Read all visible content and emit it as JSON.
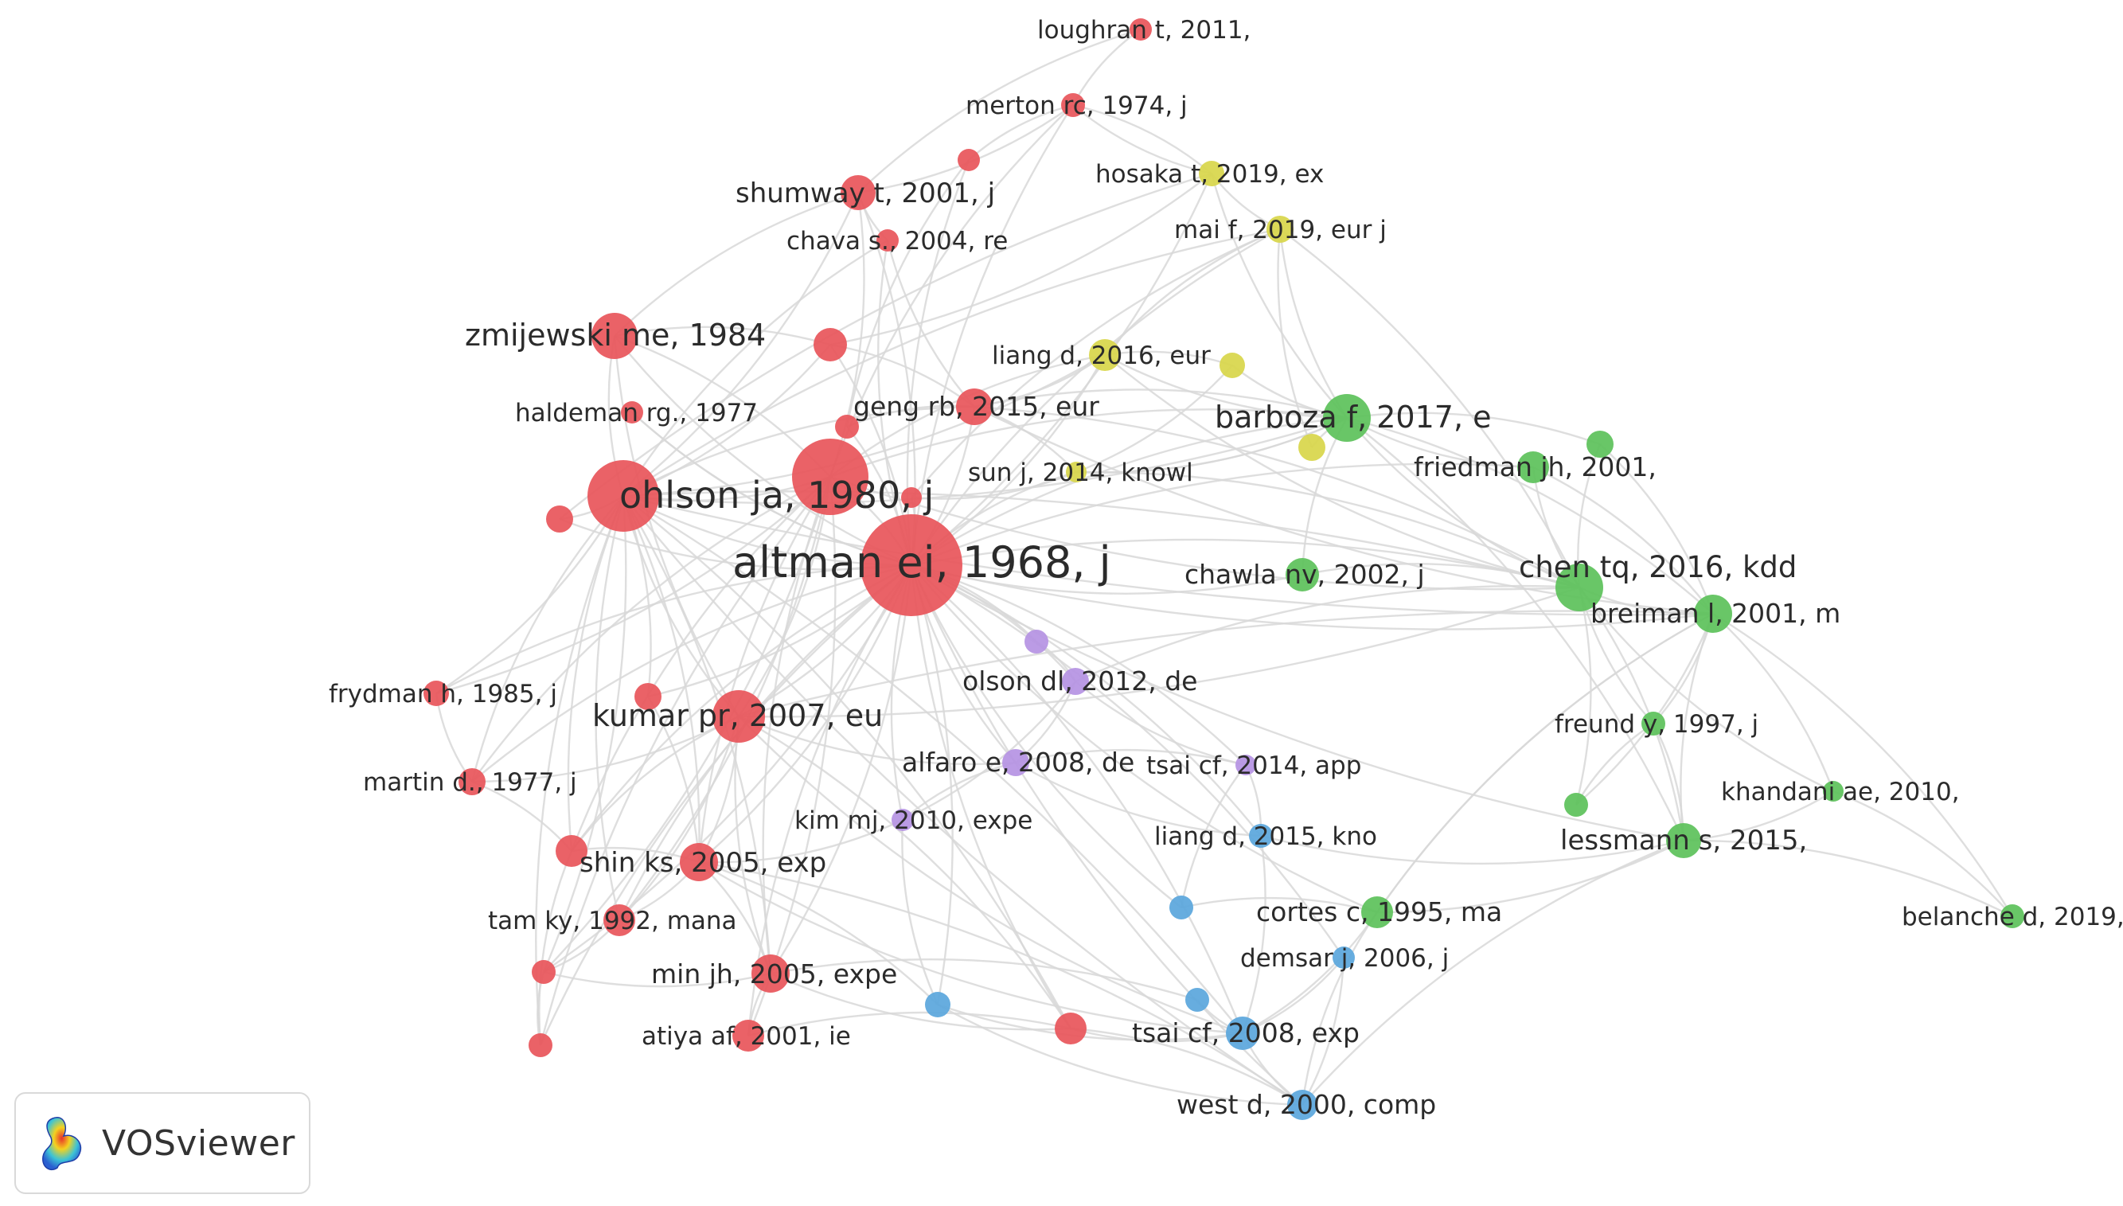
{
  "legend": {
    "logo_text": "VOSviewer"
  },
  "colors": {
    "cluster_red": "#e8555a",
    "cluster_green": "#5cc15a",
    "cluster_yellow": "#d8d64a",
    "cluster_purple": "#b592e3",
    "cluster_blue": "#5aa6dc",
    "edge": "#d8d8d8"
  },
  "nodes": [
    {
      "id": "loughran",
      "label": "loughran t, 2011,",
      "cluster": "red"
    },
    {
      "id": "merton",
      "label": "merton rc, 1974, j",
      "cluster": "red"
    },
    {
      "id": "shumway",
      "label": "shumway t, 2001, j",
      "cluster": "red"
    },
    {
      "id": "chava",
      "label": "chava s., 2004, re",
      "cluster": "red"
    },
    {
      "id": "hosaka",
      "label": "hosaka t, 2019, ex",
      "cluster": "yellow"
    },
    {
      "id": "mai",
      "label": "mai f, 2019, eur j",
      "cluster": "yellow"
    },
    {
      "id": "zmijewski",
      "label": "zmijewski me, 1984",
      "cluster": "red"
    },
    {
      "id": "liang2016",
      "label": "liang d, 2016, eur",
      "cluster": "yellow"
    },
    {
      "id": "haldeman",
      "label": "haldeman rg., 1977",
      "cluster": "red"
    },
    {
      "id": "geng",
      "label": "geng rb, 2015, eur",
      "cluster": "red"
    },
    {
      "id": "barboza",
      "label": "barboza f, 2017, e",
      "cluster": "green"
    },
    {
      "id": "ohlson",
      "label": "ohlson ja, 1980, j",
      "cluster": "red"
    },
    {
      "id": "sun",
      "label": "sun j, 2014, knowl",
      "cluster": "yellow"
    },
    {
      "id": "friedman",
      "label": "friedman jh, 2001,",
      "cluster": "green"
    },
    {
      "id": "altman",
      "label": "altman ei, 1968, j",
      "cluster": "red"
    },
    {
      "id": "chawla",
      "label": "chawla nv, 2002, j",
      "cluster": "green"
    },
    {
      "id": "chentq",
      "label": "chen tq, 2016, kdd",
      "cluster": "green"
    },
    {
      "id": "breiman",
      "label": "breiman l, 2001, m",
      "cluster": "green"
    },
    {
      "id": "frydman",
      "label": "frydman h, 1985, j",
      "cluster": "red"
    },
    {
      "id": "olson",
      "label": "olson dl, 2012, de",
      "cluster": "purple"
    },
    {
      "id": "kumar",
      "label": "kumar pr, 2007, eu",
      "cluster": "red"
    },
    {
      "id": "freund",
      "label": "freund y, 1997, j",
      "cluster": "green"
    },
    {
      "id": "alfaro",
      "label": "alfaro e, 2008, de",
      "cluster": "purple"
    },
    {
      "id": "tsaicf2014",
      "label": "tsai cf, 2014, app",
      "cluster": "purple"
    },
    {
      "id": "martin",
      "label": "martin d., 1977, j",
      "cluster": "red"
    },
    {
      "id": "khandani",
      "label": "khandani ae, 2010,",
      "cluster": "green"
    },
    {
      "id": "kimmj",
      "label": "kim mj, 2010, expe",
      "cluster": "purple"
    },
    {
      "id": "liang2015",
      "label": "liang d, 2015, kno",
      "cluster": "blue"
    },
    {
      "id": "lessmann",
      "label": "lessmann s, 2015,",
      "cluster": "green"
    },
    {
      "id": "shinks",
      "label": "shin ks, 2005, exp",
      "cluster": "red"
    },
    {
      "id": "cortes",
      "label": "cortes c, 1995, ma",
      "cluster": "green"
    },
    {
      "id": "tamky",
      "label": "tam ky, 1992, mana",
      "cluster": "red"
    },
    {
      "id": "belanche",
      "label": "belanche d, 2019,",
      "cluster": "green"
    },
    {
      "id": "demsar",
      "label": "demsar j, 2006, j",
      "cluster": "blue"
    },
    {
      "id": "minjh",
      "label": "min jh, 2005, expe",
      "cluster": "red"
    },
    {
      "id": "tsaicf2008",
      "label": "tsai cf, 2008, exp",
      "cluster": "blue"
    },
    {
      "id": "atiya",
      "label": "atiya af, 2001, ie",
      "cluster": "red"
    },
    {
      "id": "westd",
      "label": "west d, 2000, comp",
      "cluster": "blue"
    },
    {
      "id": "u1",
      "label": "",
      "cluster": "red"
    },
    {
      "id": "u2",
      "label": "",
      "cluster": "red"
    },
    {
      "id": "u3",
      "label": "",
      "cluster": "red"
    },
    {
      "id": "u4",
      "label": "",
      "cluster": "red"
    },
    {
      "id": "u5",
      "label": "",
      "cluster": "red"
    },
    {
      "id": "u6",
      "label": "",
      "cluster": "red"
    },
    {
      "id": "u7",
      "label": "",
      "cluster": "red"
    },
    {
      "id": "u8",
      "label": "",
      "cluster": "red"
    },
    {
      "id": "u9",
      "label": "",
      "cluster": "red"
    },
    {
      "id": "u10",
      "label": "",
      "cluster": "red"
    },
    {
      "id": "u11",
      "label": "",
      "cluster": "red"
    },
    {
      "id": "u12",
      "label": "",
      "cluster": "yellow"
    },
    {
      "id": "u13",
      "label": "",
      "cluster": "yellow"
    },
    {
      "id": "u14",
      "label": "",
      "cluster": "green"
    },
    {
      "id": "u15",
      "label": "",
      "cluster": "green"
    },
    {
      "id": "u16",
      "label": "",
      "cluster": "purple"
    },
    {
      "id": "u17",
      "label": "",
      "cluster": "blue"
    },
    {
      "id": "u18",
      "label": "",
      "cluster": "blue"
    },
    {
      "id": "u19",
      "label": "",
      "cluster": "blue"
    }
  ],
  "edges": [
    [
      "altman",
      "ohlson"
    ],
    [
      "altman",
      "u1"
    ],
    [
      "altman",
      "zmijewski"
    ],
    [
      "altman",
      "shumway"
    ],
    [
      "altman",
      "chava"
    ],
    [
      "altman",
      "geng"
    ],
    [
      "altman",
      "haldeman"
    ],
    [
      "altman",
      "frydman"
    ],
    [
      "altman",
      "kumar"
    ],
    [
      "altman",
      "martin"
    ],
    [
      "altman",
      "shinks"
    ],
    [
      "altman",
      "tamky"
    ],
    [
      "altman",
      "minjh"
    ],
    [
      "altman",
      "atiya"
    ],
    [
      "altman",
      "barboza"
    ],
    [
      "altman",
      "liang2016"
    ],
    [
      "altman",
      "sun"
    ],
    [
      "altman",
      "chawla"
    ],
    [
      "altman",
      "chentq"
    ],
    [
      "altman",
      "breiman"
    ],
    [
      "altman",
      "olson"
    ],
    [
      "altman",
      "alfaro"
    ],
    [
      "altman",
      "tsaicf2014"
    ],
    [
      "altman",
      "kimmj"
    ],
    [
      "altman",
      "liang2015"
    ],
    [
      "altman",
      "cortes"
    ],
    [
      "altman",
      "tsaicf2008"
    ],
    [
      "altman",
      "westd"
    ],
    [
      "altman",
      "mai"
    ],
    [
      "altman",
      "hosaka"
    ],
    [
      "altman",
      "merton"
    ],
    [
      "altman",
      "u2"
    ],
    [
      "altman",
      "u3"
    ],
    [
      "altman",
      "u4"
    ],
    [
      "altman",
      "u5"
    ],
    [
      "altman",
      "u6"
    ],
    [
      "altman",
      "u7"
    ],
    [
      "altman",
      "u8"
    ],
    [
      "altman",
      "u9"
    ],
    [
      "altman",
      "u10"
    ],
    [
      "altman",
      "u16"
    ],
    [
      "altman",
      "u17"
    ],
    [
      "altman",
      "u18"
    ],
    [
      "altman",
      "u11"
    ],
    [
      "altman",
      "demsar"
    ],
    [
      "altman",
      "lessmann"
    ],
    [
      "altman",
      "friedman"
    ],
    [
      "ohlson",
      "u1"
    ],
    [
      "ohlson",
      "zmijewski"
    ],
    [
      "ohlson",
      "shumway"
    ],
    [
      "ohlson",
      "chava"
    ],
    [
      "ohlson",
      "kumar"
    ],
    [
      "ohlson",
      "shinks"
    ],
    [
      "ohlson",
      "tamky"
    ],
    [
      "ohlson",
      "minjh"
    ],
    [
      "ohlson",
      "barboza"
    ],
    [
      "ohlson",
      "frydman"
    ],
    [
      "ohlson",
      "martin"
    ],
    [
      "ohlson",
      "u7"
    ],
    [
      "ohlson",
      "u8"
    ],
    [
      "ohlson",
      "u9"
    ],
    [
      "ohlson",
      "u10"
    ],
    [
      "ohlson",
      "geng"
    ],
    [
      "ohlson",
      "liang2016"
    ],
    [
      "ohlson",
      "chentq"
    ],
    [
      "ohlson",
      "breiman"
    ],
    [
      "ohlson",
      "mai"
    ],
    [
      "ohlson",
      "u2"
    ],
    [
      "ohlson",
      "u11"
    ],
    [
      "ohlson",
      "westd"
    ],
    [
      "ohlson",
      "tsaicf2008"
    ],
    [
      "u1",
      "zmijewski"
    ],
    [
      "u1",
      "kumar"
    ],
    [
      "u1",
      "shinks"
    ],
    [
      "u1",
      "tamky"
    ],
    [
      "u1",
      "minjh"
    ],
    [
      "u1",
      "barboza"
    ],
    [
      "u1",
      "martin"
    ],
    [
      "u1",
      "frydman"
    ],
    [
      "u1",
      "u8"
    ],
    [
      "u1",
      "u9"
    ],
    [
      "u1",
      "u10"
    ],
    [
      "u1",
      "atiya"
    ],
    [
      "u1",
      "shumway"
    ],
    [
      "u1",
      "merton"
    ],
    [
      "u1",
      "chentq"
    ],
    [
      "u1",
      "liang2016"
    ],
    [
      "shumway",
      "merton"
    ],
    [
      "shumway",
      "loughran"
    ],
    [
      "shumway",
      "chava"
    ],
    [
      "merton",
      "loughran"
    ],
    [
      "chava",
      "geng"
    ],
    [
      "zmijewski",
      "shumway"
    ],
    [
      "zmijewski",
      "kumar"
    ],
    [
      "kumar",
      "shinks"
    ],
    [
      "kumar",
      "minjh"
    ],
    [
      "kumar",
      "tamky"
    ],
    [
      "kumar",
      "u8"
    ],
    [
      "kumar",
      "martin"
    ],
    [
      "kumar",
      "alfaro"
    ],
    [
      "kumar",
      "u11"
    ],
    [
      "kumar",
      "tsaicf2008"
    ],
    [
      "shinks",
      "minjh"
    ],
    [
      "shinks",
      "u8"
    ],
    [
      "shinks",
      "tamky"
    ],
    [
      "shinks",
      "u7"
    ],
    [
      "shinks",
      "westd"
    ],
    [
      "shinks",
      "tsaicf2008"
    ],
    [
      "shinks",
      "u18"
    ],
    [
      "minjh",
      "atiya"
    ],
    [
      "minjh",
      "u9"
    ],
    [
      "minjh",
      "u11"
    ],
    [
      "tamky",
      "u9"
    ],
    [
      "u9",
      "u10"
    ],
    [
      "u10",
      "u8"
    ],
    [
      "liang2016",
      "barboza"
    ],
    [
      "liang2016",
      "mai"
    ],
    [
      "liang2016",
      "chentq"
    ],
    [
      "liang2016",
      "u12"
    ],
    [
      "mai",
      "barboza"
    ],
    [
      "mai",
      "hosaka"
    ],
    [
      "mai",
      "u13"
    ],
    [
      "mai",
      "chentq"
    ],
    [
      "hosaka",
      "barboza"
    ],
    [
      "hosaka",
      "merton"
    ],
    [
      "barboza",
      "chentq"
    ],
    [
      "barboza",
      "breiman"
    ],
    [
      "barboza",
      "friedman"
    ],
    [
      "barboza",
      "u14"
    ],
    [
      "barboza",
      "chawla"
    ],
    [
      "barboza",
      "lessmann"
    ],
    [
      "barboza",
      "u13"
    ],
    [
      "barboza",
      "u12"
    ],
    [
      "barboza",
      "geng"
    ],
    [
      "barboza",
      "sun"
    ],
    [
      "chentq",
      "breiman"
    ],
    [
      "chentq",
      "friedman"
    ],
    [
      "chentq",
      "freund"
    ],
    [
      "chentq",
      "lessmann"
    ],
    [
      "chentq",
      "khandani"
    ],
    [
      "chentq",
      "u14"
    ],
    [
      "chentq",
      "chawla"
    ],
    [
      "chentq",
      "kumar"
    ],
    [
      "chentq",
      "geng"
    ],
    [
      "chentq",
      "u15"
    ],
    [
      "breiman",
      "friedman"
    ],
    [
      "breiman",
      "freund"
    ],
    [
      "breiman",
      "lessmann"
    ],
    [
      "breiman",
      "khandani"
    ],
    [
      "breiman",
      "cortes"
    ],
    [
      "breiman",
      "u15"
    ],
    [
      "breiman",
      "u14"
    ],
    [
      "breiman",
      "geng"
    ],
    [
      "breiman",
      "kumar"
    ],
    [
      "breiman",
      "belanche"
    ],
    [
      "lessmann",
      "khandani"
    ],
    [
      "lessmann",
      "belanche"
    ],
    [
      "lessmann",
      "freund"
    ],
    [
      "lessmann",
      "cortes"
    ],
    [
      "lessmann",
      "westd"
    ],
    [
      "lessmann",
      "liang2015"
    ],
    [
      "cortes",
      "u17"
    ],
    [
      "cortes",
      "tsaicf2008"
    ],
    [
      "cortes",
      "westd"
    ],
    [
      "cortes",
      "breiman"
    ],
    [
      "tsaicf2008",
      "westd"
    ],
    [
      "tsaicf2008",
      "u19"
    ],
    [
      "tsaicf2008",
      "demsar"
    ],
    [
      "tsaicf2008",
      "u18"
    ],
    [
      "tsaicf2008",
      "liang2015"
    ],
    [
      "westd",
      "u18"
    ],
    [
      "westd",
      "demsar"
    ],
    [
      "olson",
      "alfaro"
    ],
    [
      "olson",
      "tsaicf2014"
    ],
    [
      "olson",
      "kimmj"
    ],
    [
      "olson",
      "u16"
    ],
    [
      "olson",
      "chentq"
    ],
    [
      "alfaro",
      "kimmj"
    ],
    [
      "alfaro",
      "tsaicf2014"
    ],
    [
      "alfaro",
      "liang2015"
    ],
    [
      "tsaicf2014",
      "liang2015"
    ],
    [
      "kimmj",
      "u18"
    ],
    [
      "kimmj",
      "shinks"
    ],
    [
      "geng",
      "liang2016"
    ],
    [
      "geng",
      "sun"
    ],
    [
      "geng",
      "u4"
    ],
    [
      "u4",
      "u3"
    ],
    [
      "u2",
      "zmijewski"
    ],
    [
      "u2",
      "geng"
    ],
    [
      "u2",
      "hosaka"
    ],
    [
      "u6",
      "mai"
    ],
    [
      "u6",
      "sun"
    ],
    [
      "u3",
      "merton"
    ],
    [
      "u5",
      "ohlson"
    ],
    [
      "u5",
      "hosaka"
    ],
    [
      "sun",
      "u12"
    ],
    [
      "sun",
      "chentq"
    ],
    [
      "sun",
      "barboza"
    ],
    [
      "u11",
      "westd"
    ],
    [
      "u11",
      "tsaicf2008"
    ],
    [
      "atiya",
      "u11"
    ],
    [
      "u19",
      "minjh"
    ],
    [
      "u17",
      "tsaicf2014"
    ],
    [
      "frydman",
      "martin"
    ],
    [
      "martin",
      "u8"
    ],
    [
      "haldeman",
      "altman"
    ],
    [
      "merton",
      "hosaka"
    ],
    [
      "freund",
      "u15"
    ],
    [
      "khandani",
      "belanche"
    ]
  ]
}
